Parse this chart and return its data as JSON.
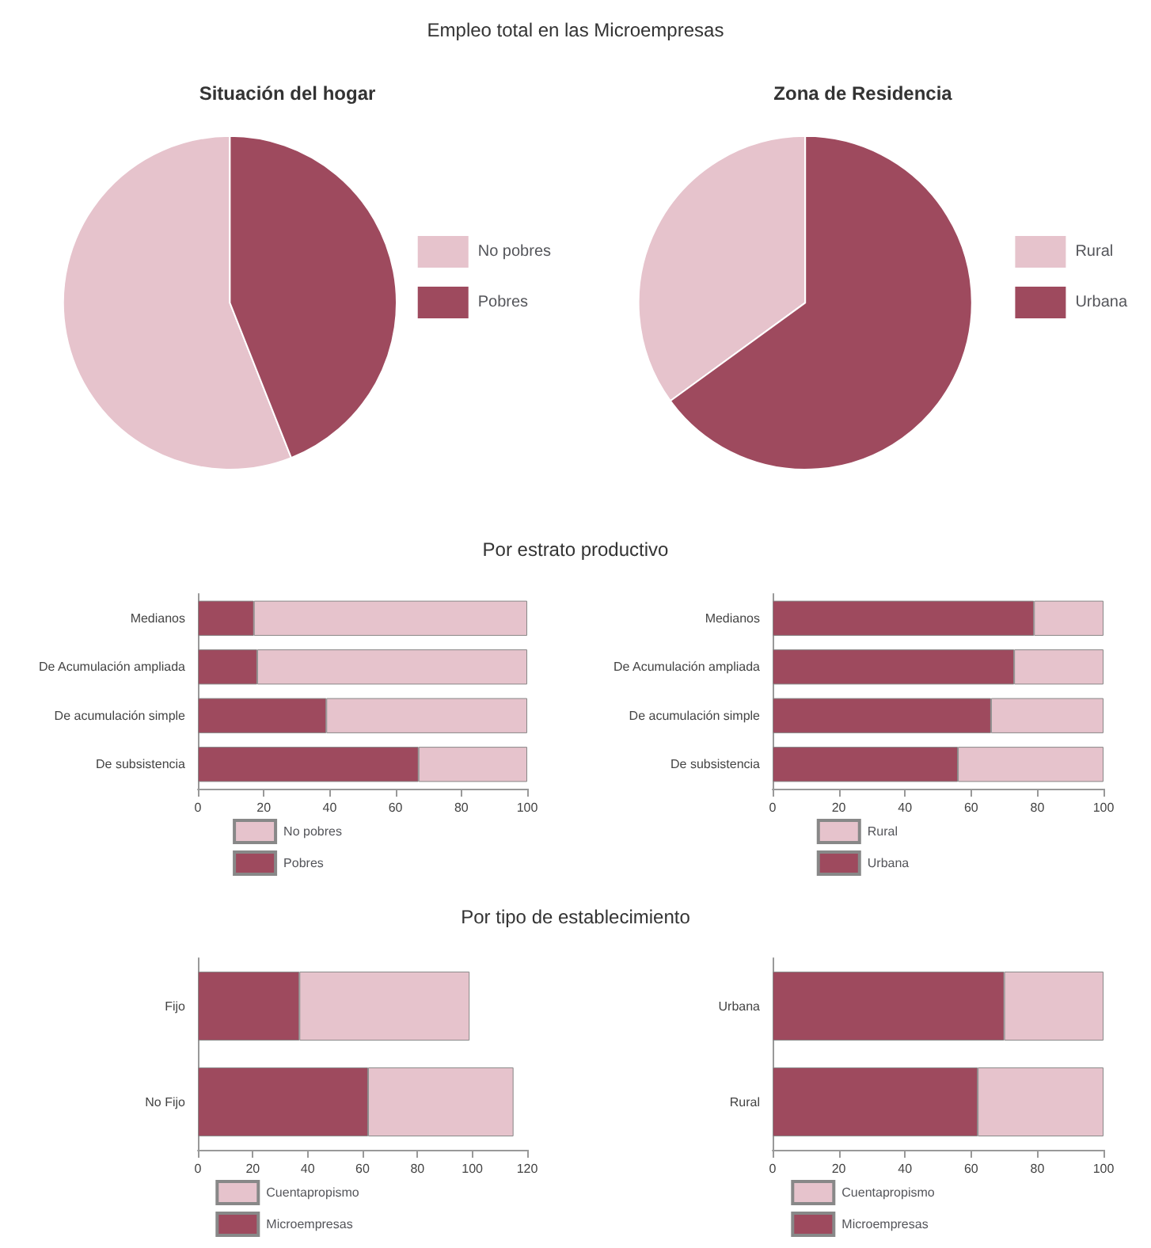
{
  "chart_data": [
    {
      "type": "pie",
      "title": "Situación del hogar",
      "annotations": [
        "Empleo total en las Microempresas"
      ],
      "categories": [
        "No pobres",
        "Pobres"
      ],
      "values": [
        56,
        44
      ],
      "colors": [
        "#e6c3cc",
        "#9e4a5e"
      ],
      "legend": "right"
    },
    {
      "type": "pie",
      "title": "Zona de Residencia",
      "categories": [
        "Rural",
        "Urbana"
      ],
      "values": [
        35,
        65
      ],
      "colors": [
        "#e6c3cc",
        "#9e4a5e"
      ],
      "legend": "right"
    },
    {
      "type": "bar",
      "title": "Por estrato productivo",
      "orientation": "horizontal",
      "stacked": true,
      "categories": [
        "Medianos",
        "De Acumulación ampliada",
        "De acumulación simple",
        "De subsistencia"
      ],
      "series": [
        {
          "name": "Pobres",
          "color": "#9e4a5e",
          "values": [
            17,
            18,
            39,
            67
          ]
        },
        {
          "name": "No pobres",
          "color": "#e6c3cc",
          "values": [
            83,
            82,
            61,
            33
          ]
        }
      ],
      "xlim": [
        0,
        100
      ],
      "xticks": [
        0,
        20,
        40,
        60,
        80,
        100
      ],
      "grid": false,
      "legend": "bottom"
    },
    {
      "type": "bar",
      "orientation": "horizontal",
      "stacked": true,
      "categories": [
        "Medianos",
        "De Acumulación ampliada",
        "De acumulación simple",
        "De subsistencia"
      ],
      "series": [
        {
          "name": "Urbana",
          "color": "#9e4a5e",
          "values": [
            79,
            73,
            66,
            56
          ]
        },
        {
          "name": "Rural",
          "color": "#e6c3cc",
          "values": [
            21,
            27,
            34,
            44
          ]
        }
      ],
      "xlim": [
        0,
        100
      ],
      "xticks": [
        0,
        20,
        40,
        60,
        80,
        100
      ],
      "grid": false,
      "legend": "bottom"
    },
    {
      "type": "bar",
      "title": "Por tipo de establecimiento",
      "orientation": "horizontal",
      "stacked": true,
      "categories": [
        "Fijo",
        "No Fijo"
      ],
      "series": [
        {
          "name": "Microempresas",
          "color": "#9e4a5e",
          "values": [
            37,
            62
          ]
        },
        {
          "name": "Cuentapropismo",
          "color": "#e6c3cc",
          "values": [
            62,
            53
          ]
        }
      ],
      "xlim": [
        0,
        120
      ],
      "xticks": [
        0,
        20,
        40,
        60,
        80,
        100,
        120
      ],
      "grid": false,
      "legend": "bottom"
    },
    {
      "type": "bar",
      "orientation": "horizontal",
      "stacked": true,
      "categories": [
        "Urbana",
        "Rural"
      ],
      "series": [
        {
          "name": "Microempresas",
          "color": "#9e4a5e",
          "values": [
            70,
            62
          ]
        },
        {
          "name": "Cuentapropismo",
          "color": "#e6c3cc",
          "values": [
            30,
            38
          ]
        }
      ],
      "xlim": [
        0,
        100
      ],
      "xticks": [
        0,
        20,
        40,
        60,
        80,
        100
      ],
      "grid": false,
      "legend": "bottom"
    }
  ]
}
